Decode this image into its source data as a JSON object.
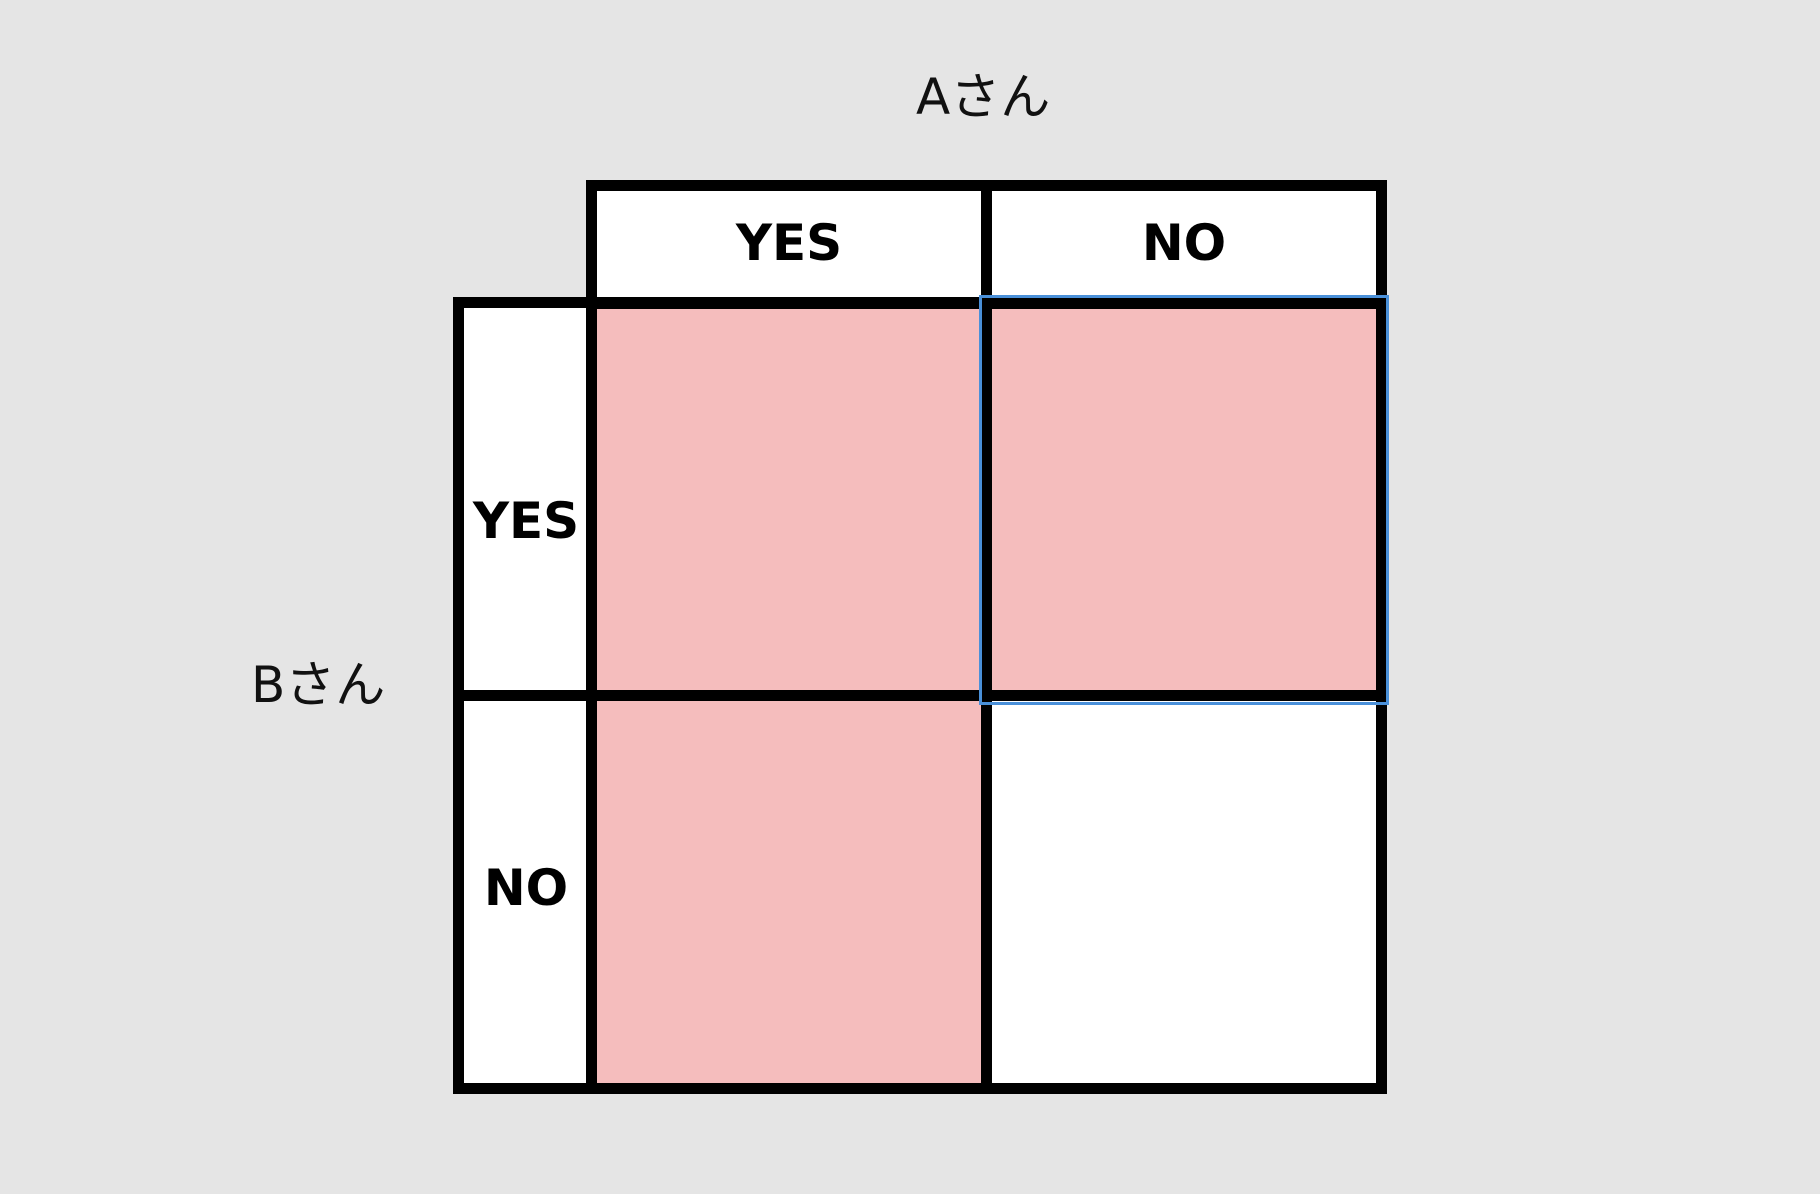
{
  "labels": {
    "column_player": "Aさん",
    "row_player": "Bさん"
  },
  "columns": [
    "YES",
    "NO"
  ],
  "rows": [
    "YES",
    "NO"
  ],
  "cells": [
    {
      "row": "YES",
      "column": "YES",
      "fill": "#f5bdbd"
    },
    {
      "row": "YES",
      "column": "NO",
      "fill": "#f5bdbd",
      "selected": true
    },
    {
      "row": "NO",
      "column": "YES",
      "fill": "#f5bdbd"
    },
    {
      "row": "NO",
      "column": "NO",
      "fill": "#ffffff"
    }
  ],
  "colors": {
    "background": "#e5e5e5",
    "highlight_fill": "#f5bdbd",
    "selection_border": "#4a90d9",
    "grid_line": "#000000"
  }
}
